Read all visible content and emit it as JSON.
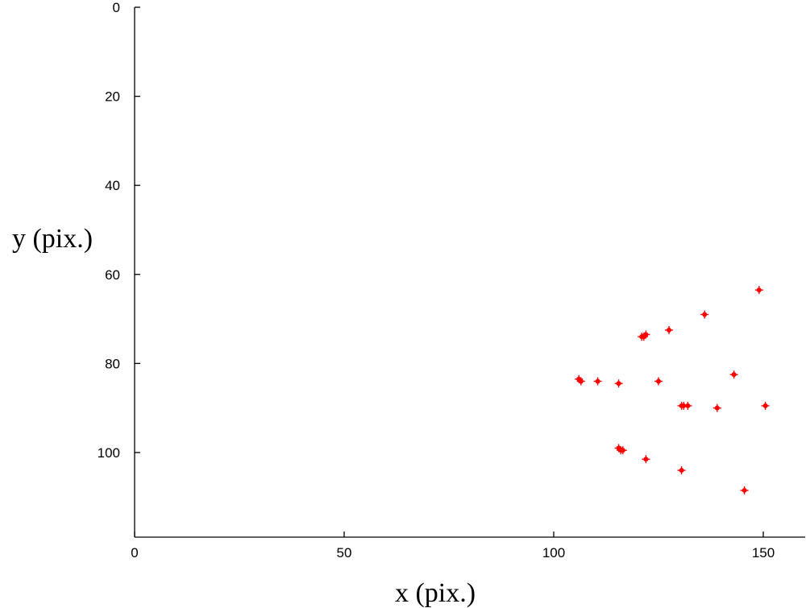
{
  "chart_data": {
    "type": "scatter",
    "title": "",
    "xlabel": "x (pix.)",
    "ylabel": "y (pix.)",
    "xlim": [
      0,
      160
    ],
    "ylim": [
      0,
      119
    ],
    "y_axis_direction": "reversed (0 at top)",
    "xticks": [
      0,
      50,
      100,
      150
    ],
    "yticks": [
      0,
      20,
      40,
      60,
      80,
      100
    ],
    "grid": false,
    "box": false,
    "marker": "point",
    "marker_color": "#ff0000",
    "points": [
      {
        "x": 149,
        "y": 63.5
      },
      {
        "x": 136,
        "y": 69
      },
      {
        "x": 127.5,
        "y": 72.5
      },
      {
        "x": 121,
        "y": 74
      },
      {
        "x": 122,
        "y": 73.5
      },
      {
        "x": 121.5,
        "y": 74
      },
      {
        "x": 143,
        "y": 82.5
      },
      {
        "x": 106,
        "y": 83.5
      },
      {
        "x": 106.5,
        "y": 84
      },
      {
        "x": 110.5,
        "y": 84
      },
      {
        "x": 115.5,
        "y": 84.5
      },
      {
        "x": 125,
        "y": 84
      },
      {
        "x": 131,
        "y": 89.5
      },
      {
        "x": 132,
        "y": 89.5
      },
      {
        "x": 130.5,
        "y": 89.5
      },
      {
        "x": 139,
        "y": 90
      },
      {
        "x": 150.5,
        "y": 89.5
      },
      {
        "x": 115.5,
        "y": 99
      },
      {
        "x": 116,
        "y": 99.5
      },
      {
        "x": 116.5,
        "y": 99.5
      },
      {
        "x": 122,
        "y": 101.5
      },
      {
        "x": 130.5,
        "y": 104
      },
      {
        "x": 145.5,
        "y": 108.5
      }
    ]
  }
}
